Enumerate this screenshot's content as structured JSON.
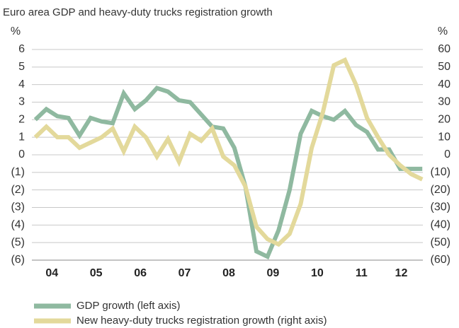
{
  "chart_data": {
    "type": "line",
    "title": "Euro area GDP and heavy-duty trucks registration growth",
    "y_label": "%",
    "y2_label": "%",
    "x": [
      2004.125,
      2004.375,
      2004.625,
      2004.875,
      2005.125,
      2005.375,
      2005.625,
      2005.875,
      2006.125,
      2006.375,
      2006.625,
      2006.875,
      2007.125,
      2007.375,
      2007.625,
      2007.875,
      2008.125,
      2008.375,
      2008.625,
      2008.875,
      2009.125,
      2009.375,
      2009.625,
      2009.875,
      2010.125,
      2010.375,
      2010.625,
      2010.875,
      2011.125,
      2011.375,
      2011.625,
      2011.875,
      2012.125,
      2012.375,
      2012.625,
      2012.875
    ],
    "xlim": [
      2004,
      2013
    ],
    "xticks": [
      {
        "value": 2004.5,
        "label": "04"
      },
      {
        "value": 2005.5,
        "label": "05"
      },
      {
        "value": 2006.5,
        "label": "06"
      },
      {
        "value": 2007.5,
        "label": "07"
      },
      {
        "value": 2008.5,
        "label": "08"
      },
      {
        "value": 2009.5,
        "label": "09"
      },
      {
        "value": 2010.5,
        "label": "10"
      },
      {
        "value": 2011.5,
        "label": "11"
      },
      {
        "value": 2012.4,
        "label": "12"
      }
    ],
    "ylim": [
      -6,
      6
    ],
    "yticks": [
      6,
      5,
      4,
      3,
      2,
      1,
      0,
      {
        "value": -1,
        "label": "(1)"
      },
      {
        "value": -2,
        "label": "(2)"
      },
      {
        "value": -3,
        "label": "(3)"
      },
      {
        "value": -4,
        "label": "(4)"
      },
      {
        "value": -5,
        "label": "(5)"
      },
      {
        "value": -6,
        "label": "(6)"
      }
    ],
    "y2lim": [
      -60,
      60
    ],
    "y2ticks": [
      60,
      50,
      40,
      30,
      20,
      10,
      0,
      {
        "value": -10,
        "label": "(10)"
      },
      {
        "value": -20,
        "label": "(20)"
      },
      {
        "value": -30,
        "label": "(30)"
      },
      {
        "value": -40,
        "label": "(40)"
      },
      {
        "value": -50,
        "label": "(50)"
      },
      {
        "value": -60,
        "label": "(60)"
      }
    ],
    "grid": true,
    "legend": "bottom-left",
    "series": [
      {
        "name": "GDP growth (left axis)",
        "color": "#8fb9a0",
        "axis": "y",
        "values": [
          2.0,
          2.6,
          2.2,
          2.1,
          1.1,
          2.1,
          1.9,
          1.8,
          3.5,
          2.6,
          3.1,
          3.8,
          3.6,
          3.1,
          3.0,
          2.3,
          1.6,
          1.5,
          0.4,
          -1.8,
          -5.5,
          -5.8,
          -4.3,
          -2.0,
          1.2,
          2.5,
          2.2,
          2.0,
          2.5,
          1.7,
          1.3,
          0.3,
          0.3,
          -0.8,
          -0.8,
          -0.8
        ]
      },
      {
        "name": "New heavy-duty trucks registration growth (right axis)",
        "color": "#e3d99b",
        "axis": "y2",
        "values": [
          10,
          16,
          10,
          10,
          4,
          7,
          10,
          15,
          2,
          16,
          10,
          -1,
          9,
          -4,
          12,
          8,
          15,
          -1,
          -6,
          -18,
          -41,
          -48,
          -51,
          -45,
          -28,
          4,
          24,
          51,
          54,
          40,
          21,
          10,
          0,
          -6,
          -11,
          -14
        ]
      }
    ]
  }
}
